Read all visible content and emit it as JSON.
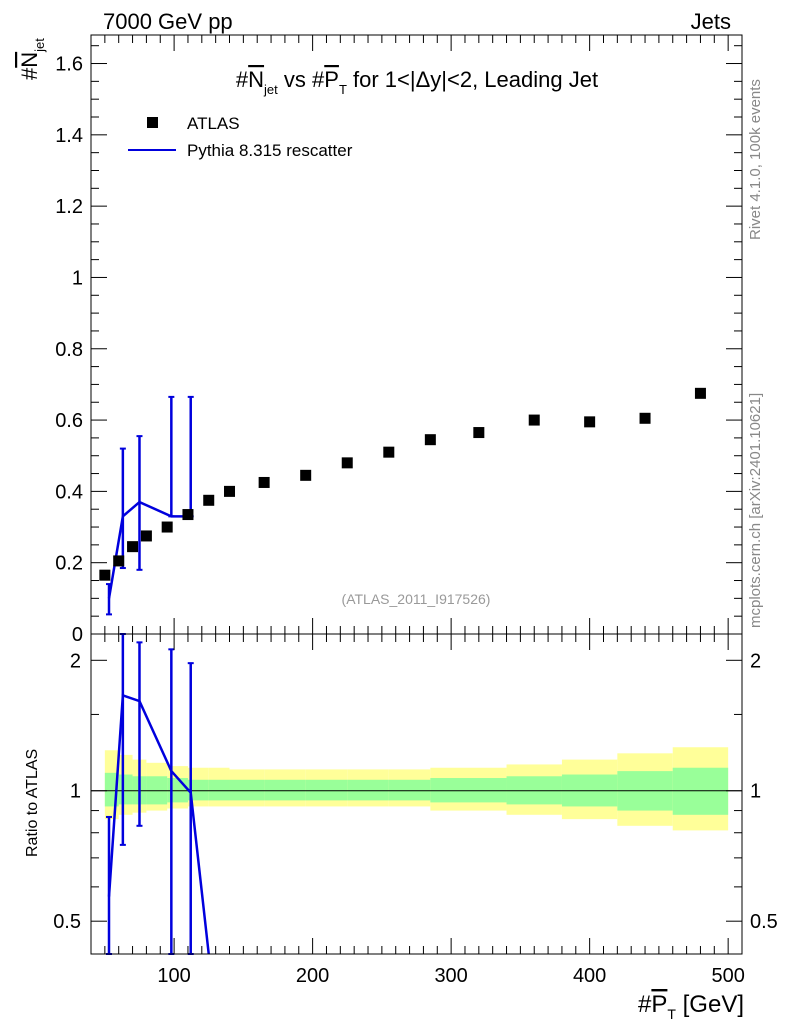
{
  "header": {
    "left": "7000 GeV pp",
    "right": "Jets"
  },
  "title": {
    "prefix": "#",
    "n": "N",
    "n_sub": "jet",
    "vs": " vs #",
    "p": "P",
    "p_sub": "T",
    "rest": " for 1<|Δy|<2, Leading Jet"
  },
  "ylabel": {
    "prefix": "#",
    "n": "N",
    "n_sub": "jet"
  },
  "xlabel": {
    "prefix": "#",
    "p": "P",
    "p_sub": "T",
    "unit": " [GeV]"
  },
  "ratio_ylabel": "Ratio to ATLAS",
  "watermark": "(ATLAS_2011_I917526)",
  "side_texts": {
    "rivet": "Rivet 4.1.0,  100k events",
    "mcplots": "mcplots.cern.ch [arXiv:2401.10621]"
  },
  "legend": [
    {
      "label": "ATLAS",
      "kind": "marker"
    },
    {
      "label": "Pythia 8.315 rescatter",
      "kind": "line"
    }
  ],
  "colors": {
    "data": "#000000",
    "mc": "#0000dd",
    "band_inner": "#99ff99",
    "band_outer": "#ffff99"
  },
  "chart_data": [
    {
      "type": "scatter",
      "panel": "main",
      "xlim": [
        40,
        510
      ],
      "ylim": [
        0,
        1.68
      ],
      "yticks": [
        0,
        0.2,
        0.4,
        0.6,
        0.8,
        1,
        1.2,
        1.4,
        1.6
      ],
      "ytick_labels": [
        "0",
        "0.2",
        "0.4",
        "0.6",
        "0.8",
        "1",
        "1.2",
        "1.4",
        "1.6"
      ],
      "series": [
        {
          "name": "ATLAS",
          "x": [
            50,
            60,
            70,
            80,
            95,
            110,
            125,
            140,
            165,
            195,
            225,
            255,
            285,
            320,
            360,
            400,
            440,
            480
          ],
          "y": [
            0.165,
            0.205,
            0.245,
            0.275,
            0.3,
            0.335,
            0.375,
            0.4,
            0.425,
            0.445,
            0.48,
            0.51,
            0.545,
            0.565,
            0.6,
            0.595,
            0.605,
            0.675
          ]
        },
        {
          "name": "Pythia 8.315 rescatter",
          "x": [
            53,
            63,
            75,
            98,
            112
          ],
          "y": [
            0.1,
            0.33,
            0.37,
            0.33,
            0.33
          ],
          "yerr_low": [
            0.055,
            0.185,
            0.18,
            0.33,
            0.33
          ],
          "yerr_high": [
            0.14,
            0.52,
            0.555,
            0.665,
            0.665
          ]
        }
      ]
    },
    {
      "type": "line",
      "panel": "ratio",
      "xlim": [
        40,
        510
      ],
      "ylim": [
        0.42,
        2.3
      ],
      "yscale": "log",
      "reference": 1,
      "yticks": [
        0.5,
        1,
        2
      ],
      "ytick_labels": [
        "0.5",
        "1",
        "2"
      ],
      "xticks": [
        100,
        200,
        300,
        400,
        500
      ],
      "xtick_labels": [
        "100",
        "200",
        "300",
        "400",
        "500"
      ],
      "band_edges": [
        50,
        60,
        70,
        80,
        95,
        110,
        125,
        140,
        165,
        195,
        225,
        255,
        285,
        340,
        380,
        420,
        460,
        500
      ],
      "band_inner": [
        [
          0.92,
          1.1
        ],
        [
          0.93,
          1.09
        ],
        [
          0.93,
          1.08
        ],
        [
          0.93,
          1.08
        ],
        [
          0.94,
          1.07
        ],
        [
          0.95,
          1.06
        ],
        [
          0.95,
          1.06
        ],
        [
          0.95,
          1.06
        ],
        [
          0.95,
          1.06
        ],
        [
          0.95,
          1.06
        ],
        [
          0.95,
          1.06
        ],
        [
          0.95,
          1.06
        ],
        [
          0.94,
          1.07
        ],
        [
          0.93,
          1.08
        ],
        [
          0.92,
          1.09
        ],
        [
          0.9,
          1.11
        ],
        [
          0.88,
          1.13
        ]
      ],
      "band_outer": [
        [
          0.86,
          1.24
        ],
        [
          0.88,
          1.21
        ],
        [
          0.89,
          1.18
        ],
        [
          0.9,
          1.16
        ],
        [
          0.91,
          1.14
        ],
        [
          0.92,
          1.13
        ],
        [
          0.92,
          1.13
        ],
        [
          0.92,
          1.12
        ],
        [
          0.92,
          1.12
        ],
        [
          0.92,
          1.12
        ],
        [
          0.92,
          1.12
        ],
        [
          0.92,
          1.12
        ],
        [
          0.9,
          1.13
        ],
        [
          0.88,
          1.15
        ],
        [
          0.86,
          1.18
        ],
        [
          0.83,
          1.22
        ],
        [
          0.81,
          1.26
        ]
      ],
      "series": [
        {
          "name": "Pythia 8.315 rescatter",
          "x": [
            53,
            63,
            75,
            98,
            112,
            125
          ],
          "y": [
            0.57,
            1.66,
            1.61,
            1.11,
            0.99,
            0.42
          ],
          "err_x": [
            53,
            63,
            75,
            98,
            112
          ],
          "yerr_low": [
            0.4,
            0.75,
            0.83,
            0.42,
            0.42
          ],
          "yerr_high": [
            0.87,
            2.3,
            2.2,
            2.12,
            1.97
          ]
        }
      ]
    }
  ]
}
